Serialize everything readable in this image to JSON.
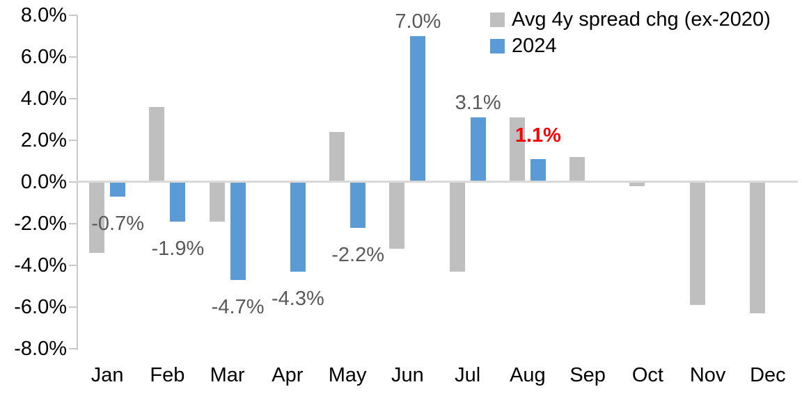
{
  "chart_data": {
    "type": "bar",
    "title": "",
    "categories": [
      "Jan",
      "Feb",
      "Mar",
      "Apr",
      "May",
      "Jun",
      "Jul",
      "Aug",
      "Sep",
      "Oct",
      "Nov",
      "Dec"
    ],
    "series": [
      {
        "name": "Avg 4y spread chg (ex-2020)",
        "color": "#BFBFBF",
        "values": [
          -3.4,
          3.6,
          -1.9,
          0.0,
          2.4,
          -3.2,
          -4.3,
          3.1,
          1.2,
          -0.2,
          -5.9,
          -6.3
        ]
      },
      {
        "name": "2024",
        "color": "#5B9BD5",
        "values": [
          -0.7,
          -1.9,
          -4.7,
          -4.3,
          -2.2,
          7.0,
          3.1,
          1.1,
          null,
          null,
          null,
          null
        ]
      }
    ],
    "y_axis": {
      "min": -8,
      "max": 8,
      "step": 2,
      "tick_labels": [
        "8.0%",
        "6.0%",
        "4.0%",
        "2.0%",
        "0.0%",
        "-2.0%",
        "-4.0%",
        "-6.0%",
        "-8.0%"
      ]
    },
    "grid": false,
    "legend_position": "top-right",
    "data_labels": {
      "default_color": "#595959",
      "items": [
        {
          "month": "Jan",
          "text": "-0.7%"
        },
        {
          "month": "Feb",
          "text": "-1.9%"
        },
        {
          "month": "Mar",
          "text": "-4.7%"
        },
        {
          "month": "Apr",
          "text": "-4.3%"
        },
        {
          "month": "May",
          "text": "-2.2%"
        },
        {
          "month": "Jun",
          "text": "7.0%"
        },
        {
          "month": "Jul",
          "text": "3.1%"
        },
        {
          "month": "Aug",
          "text": "1.1%",
          "color": "#FF0000",
          "bold": true
        }
      ]
    },
    "colors": {
      "axis": "#C9C9C9",
      "zero_line": "#D9D9D9",
      "axis_text": "#000000"
    }
  }
}
